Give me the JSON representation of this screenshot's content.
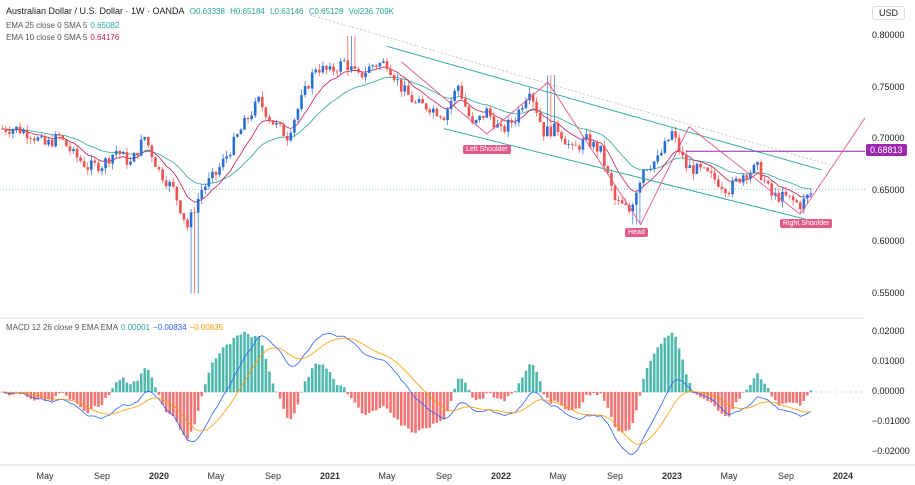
{
  "header": {
    "symbol": "Australian Dollar / U.S. Dollar · 1W · OANDA",
    "open": "O0.63338",
    "high": "H0.65184",
    "low": "L0.63146",
    "close": "C0.65128",
    "vol": "Vol236.709K",
    "currency": "USD"
  },
  "indicators": [
    {
      "label": "EMA 25 close 0 SMA 5",
      "value": "0.65082",
      "color": "#26a69a"
    },
    {
      "label": "EMA 10 close 0 SMA 5",
      "value": "0.64176",
      "color": "#c2185b"
    }
  ],
  "macd_legend": {
    "label": "MACD 12 26 close 9 EMA EMA",
    "hist": "0.00001",
    "macd": "−0.00834",
    "signal": "−0.00835"
  },
  "annotations": {
    "left_shoulder": "Left Shoulder",
    "head": "Head",
    "right_shoulder": "Right Shoulder",
    "level": "0.68813"
  },
  "colors": {
    "up": "#26a69a",
    "down": "#ef5350",
    "channel": "#26a69a",
    "pattern": "#e05a8a",
    "level": "#9c27b0",
    "macd": "#2962ff",
    "signal": "#ff9800"
  },
  "chart_data": {
    "type": "candlestick",
    "interval": "1W",
    "price_ticks": [
      "0.80000",
      "0.75000",
      "0.70000",
      "0.65000",
      "0.60000",
      "0.55000"
    ],
    "macd_ticks": [
      "0.02000",
      "0.01000",
      "0.00000",
      "−0.01000",
      "−0.02000"
    ],
    "time_ticks": [
      "May",
      "Sep",
      "2020",
      "May",
      "Sep",
      "2021",
      "May",
      "Sep",
      "2022",
      "May",
      "Sep",
      "2023",
      "May",
      "Sep",
      "2024"
    ],
    "monthly_close_approx": {
      "start": "2019-02",
      "values": [
        0.71,
        0.71,
        0.705,
        0.694,
        0.702,
        0.685,
        0.673,
        0.675,
        0.689,
        0.676,
        0.702,
        0.669,
        0.651,
        0.615,
        0.651,
        0.666,
        0.69,
        0.715,
        0.737,
        0.716,
        0.703,
        0.738,
        0.77,
        0.765,
        0.775,
        0.76,
        0.772,
        0.774,
        0.75,
        0.734,
        0.731,
        0.723,
        0.752,
        0.712,
        0.727,
        0.707,
        0.72,
        0.75,
        0.707,
        0.71,
        0.689,
        0.699,
        0.688,
        0.64,
        0.63,
        0.672,
        0.68,
        0.706,
        0.673,
        0.669,
        0.661,
        0.651,
        0.666,
        0.672,
        0.645,
        0.643,
        0.636,
        0.651
      ]
    },
    "extremes": [
      {
        "date": "2020-03",
        "low": 0.55
      },
      {
        "date": "2021-02",
        "high": 0.8
      },
      {
        "date": "2022-04",
        "high": 0.762
      },
      {
        "date": "2022-10",
        "low": 0.617
      }
    ],
    "horizontal_level": 0.68813
  }
}
